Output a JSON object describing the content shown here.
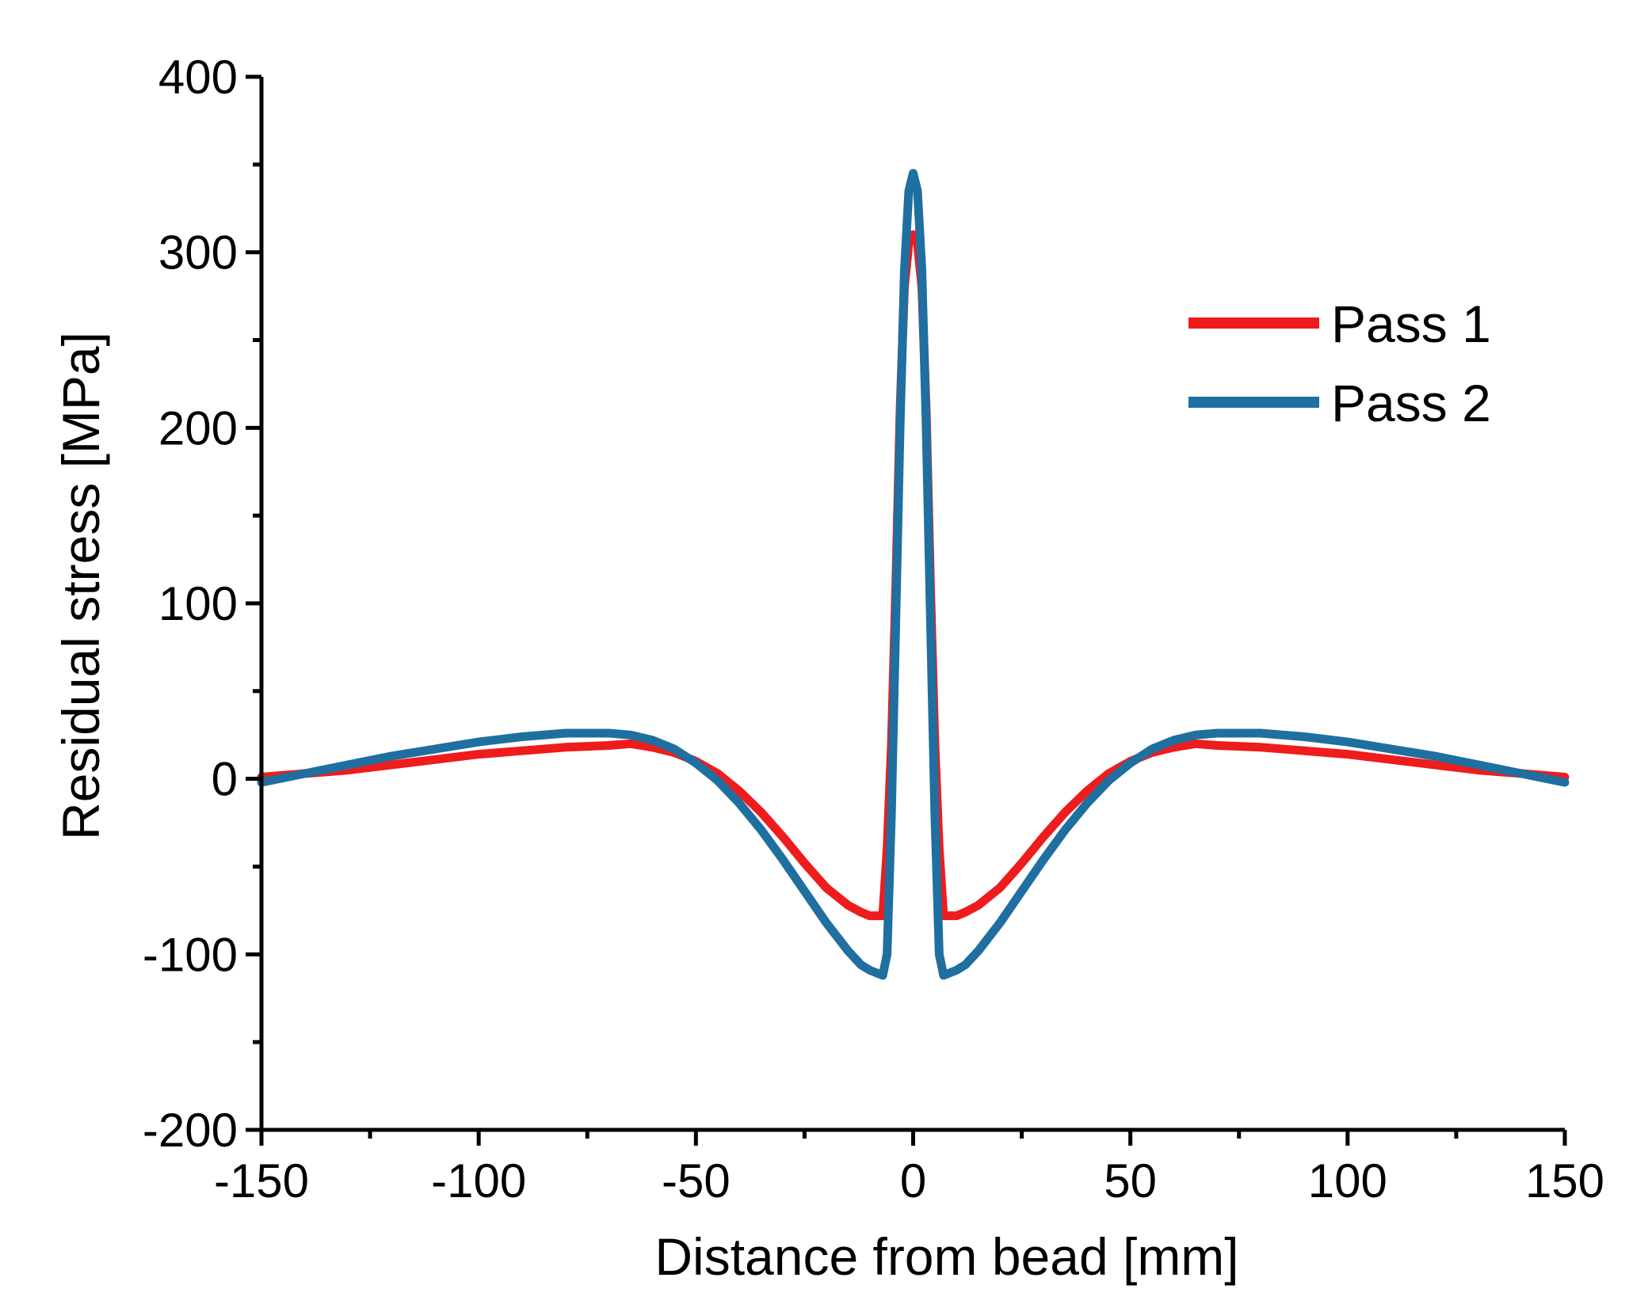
{
  "chart_data": {
    "type": "line",
    "title": "",
    "xlabel": "Distance from bead [mm]",
    "ylabel": "Residual stress [MPa]",
    "xlim": [
      -150,
      150
    ],
    "ylim": [
      -200,
      400
    ],
    "xticks": [
      -150,
      -100,
      -50,
      0,
      50,
      100,
      150
    ],
    "yticks": [
      -200,
      -100,
      0,
      100,
      200,
      300,
      400
    ],
    "xtick_labels": [
      "-150",
      "-100",
      "-50",
      "0",
      "50",
      "100",
      "150"
    ],
    "ytick_labels": [
      "-200",
      "-100",
      "0",
      "100",
      "200",
      "300",
      "400"
    ],
    "legend_position": "top-right",
    "series": [
      {
        "name": "Pass 1",
        "color": "#ee1c1c",
        "x": [
          -150,
          -140,
          -130,
          -120,
          -110,
          -100,
          -90,
          -80,
          -70,
          -65,
          -60,
          -55,
          -50,
          -45,
          -40,
          -35,
          -30,
          -25,
          -20,
          -15,
          -12,
          -10,
          -8,
          -7,
          -6,
          -5,
          -4,
          -3,
          -2,
          -1,
          0,
          1,
          2,
          3,
          4,
          5,
          6,
          7,
          8,
          10,
          12,
          15,
          20,
          25,
          30,
          35,
          40,
          45,
          50,
          55,
          60,
          65,
          70,
          80,
          90,
          100,
          110,
          120,
          130,
          140,
          150
        ],
        "y": [
          1,
          3,
          5,
          8,
          11,
          14,
          16,
          18,
          19,
          20,
          18,
          15,
          10,
          3,
          -7,
          -19,
          -33,
          -48,
          -62,
          -72,
          -76,
          -78,
          -78,
          -78,
          -40,
          20,
          110,
          210,
          280,
          305,
          310,
          305,
          280,
          210,
          110,
          20,
          -40,
          -78,
          -78,
          -78,
          -76,
          -72,
          -62,
          -48,
          -33,
          -19,
          -7,
          3,
          10,
          15,
          18,
          20,
          19,
          18,
          16,
          14,
          11,
          8,
          5,
          3,
          1
        ]
      },
      {
        "name": "Pass 2",
        "color": "#1f6fa0",
        "x": [
          -150,
          -140,
          -130,
          -120,
          -110,
          -100,
          -90,
          -80,
          -75,
          -70,
          -65,
          -60,
          -55,
          -50,
          -45,
          -40,
          -35,
          -30,
          -25,
          -20,
          -15,
          -12,
          -10,
          -8,
          -7,
          -6,
          -5,
          -4,
          -3,
          -2,
          -1,
          0,
          1,
          2,
          3,
          4,
          5,
          6,
          7,
          8,
          10,
          12,
          15,
          20,
          25,
          30,
          35,
          40,
          45,
          50,
          55,
          60,
          65,
          70,
          75,
          80,
          90,
          100,
          110,
          120,
          130,
          140,
          150
        ],
        "y": [
          -2,
          3,
          8,
          13,
          17,
          21,
          24,
          26,
          26,
          26,
          25,
          22,
          17,
          9,
          -1,
          -14,
          -29,
          -46,
          -64,
          -82,
          -98,
          -106,
          -109,
          -111,
          -112,
          -100,
          -20,
          90,
          200,
          290,
          335,
          345,
          335,
          290,
          200,
          90,
          -20,
          -100,
          -112,
          -111,
          -109,
          -106,
          -98,
          -82,
          -64,
          -46,
          -29,
          -14,
          -1,
          9,
          17,
          22,
          25,
          26,
          26,
          26,
          24,
          21,
          17,
          13,
          8,
          3,
          -2
        ]
      }
    ]
  }
}
